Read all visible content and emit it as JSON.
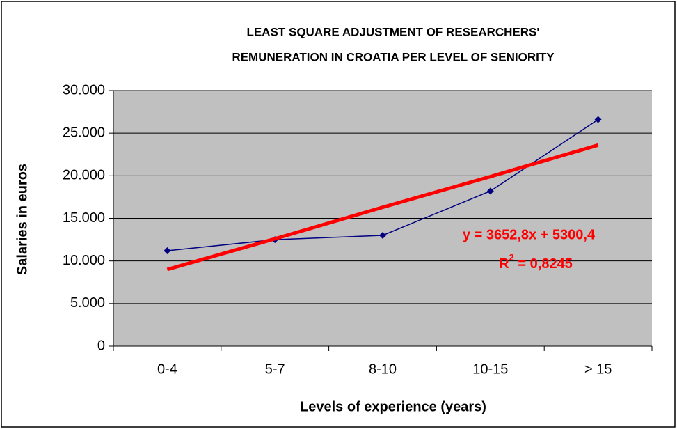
{
  "chart_data": {
    "type": "line",
    "title": [
      "LEAST SQUARE ADJUSTMENT OF RESEARCHERS'",
      "REMUNERATION IN CROATIA PER LEVEL OF SENIORITY"
    ],
    "x_label": "Levels of experience (years)",
    "y_label": "Salaries in euros",
    "categories": [
      "0-4",
      "5-7",
      "8-10",
      "10-15",
      "> 15"
    ],
    "series": [
      {
        "color": "#000080",
        "marker": "diamond",
        "values": [
          11200,
          12500,
          13000,
          18200,
          26600
        ]
      },
      {
        "color": "#ff0000",
        "marker": "none",
        "values": [
          9000,
          12600,
          16300,
          19900,
          23600
        ]
      }
    ],
    "ylim": [
      0,
      30000
    ],
    "yticks": [
      0,
      {
        "value": 5000,
        "label": "5.000"
      },
      {
        "value": 10000,
        "label": "10.000"
      },
      {
        "value": 15000,
        "label": "15.000"
      },
      {
        "value": 20000,
        "label": "20.000"
      },
      {
        "value": 25000,
        "label": "25.000"
      },
      {
        "value": 30000,
        "label": "30.000"
      }
    ],
    "grid": true,
    "plot_background": "#c0c0c0",
    "annotations": {
      "equation": "y = 3652,8x + 5300,4",
      "r2": {
        "symbol": "R",
        "superscript": "2",
        "text": " = 0,8245"
      },
      "color": "#ff0000"
    }
  }
}
